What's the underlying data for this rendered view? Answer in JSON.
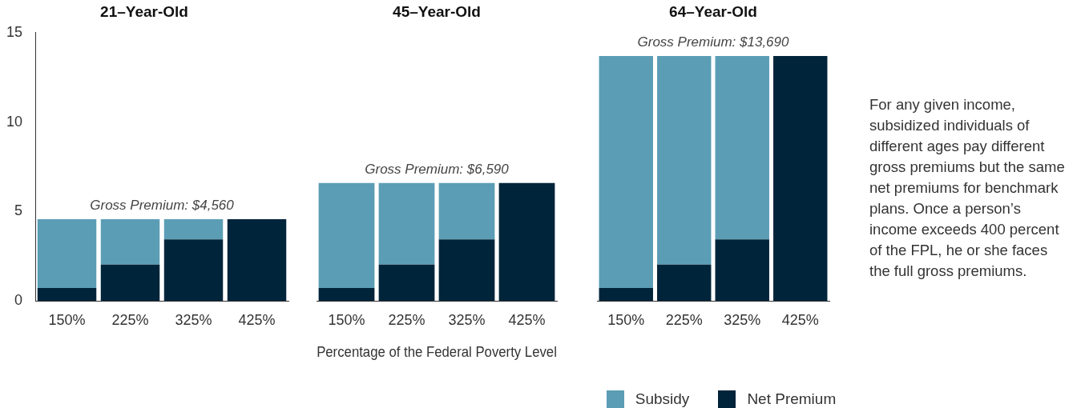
{
  "chart_data": [
    {
      "type": "bar",
      "title": "21–Year-Old",
      "categories": [
        "150%",
        "225%",
        "325%",
        "425%"
      ],
      "stacked": true,
      "ylim": [
        0,
        15
      ],
      "yticks": [
        0,
        5,
        10,
        15
      ],
      "grid": false,
      "legend": false,
      "series": [
        {
          "color": "#00243a",
          "values": [
            0.72,
            2.03,
            3.43,
            4.56
          ]
        },
        {
          "color": "#5b9db5",
          "values": [
            3.84,
            2.53,
            1.13,
            0
          ]
        }
      ],
      "annotations": [
        "Gross Premium: $4,560"
      ]
    },
    {
      "type": "bar",
      "title": "45–Year-Old",
      "xlabel": "Percentage of the Federal Poverty Level",
      "categories": [
        "150%",
        "225%",
        "325%",
        "425%"
      ],
      "stacked": true,
      "ylim": [
        0,
        15
      ],
      "tick_labels": "x",
      "grid": false,
      "legend": false,
      "series": [
        {
          "color": "#00243a",
          "values": [
            0.72,
            2.03,
            3.43,
            6.59
          ]
        },
        {
          "color": "#5b9db5",
          "values": [
            5.87,
            4.56,
            3.16,
            0
          ]
        }
      ],
      "annotations": [
        "Gross Premium: $6,590"
      ]
    },
    {
      "type": "bar",
      "title": "64–Year-Old",
      "categories": [
        "150%",
        "225%",
        "325%",
        "425%"
      ],
      "stacked": true,
      "ylim": [
        0,
        15
      ],
      "tick_labels": "x",
      "grid": false,
      "legend": "bottom",
      "series": [
        {
          "name": "Net Premium",
          "color": "#00243a",
          "values": [
            0.72,
            2.03,
            3.43,
            13.69
          ]
        },
        {
          "name": "Subsidy",
          "color": "#5b9db5",
          "values": [
            12.97,
            11.66,
            10.26,
            0
          ]
        }
      ],
      "annotations": [
        "Gross Premium: $13,690",
        "For any given income, subsidized individuals of different ages pay different gross premiums but the same net premiums for benchmark plans. Once a person’s income exceeds 400 percent of the FPL, he or she faces the full gross premiums."
      ]
    }
  ]
}
